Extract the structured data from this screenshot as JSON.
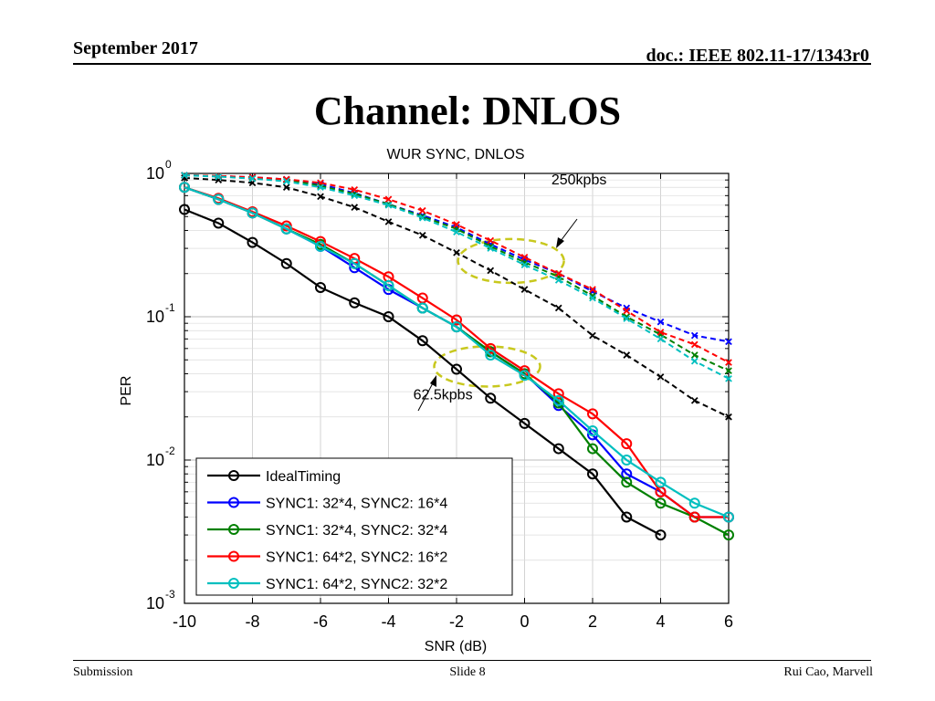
{
  "header": {
    "date": "September 2017",
    "doc": "doc.: IEEE 802.11-17/1343r0"
  },
  "slide_title": "Channel: DNLOS",
  "footer": {
    "left": "Submission",
    "center": "Slide 8",
    "right": "Rui Cao, Marvell"
  },
  "chart_data": {
    "type": "line",
    "title": "WUR SYNC, DNLOS",
    "xlabel": "SNR (dB)",
    "ylabel": "PER",
    "xlim": [
      -10,
      6
    ],
    "ylim": [
      0.001,
      1
    ],
    "yscale": "log",
    "xticks": [
      "-10",
      "-8",
      "-6",
      "-4",
      "-2",
      "0",
      "2",
      "4",
      "6"
    ],
    "yticks": [
      {
        "base": "10",
        "exp": "0",
        "value": 1
      },
      {
        "base": "10",
        "exp": "-1",
        "value": 0.1
      },
      {
        "base": "10",
        "exp": "-2",
        "value": 0.01
      },
      {
        "base": "10",
        "exp": "-3",
        "value": 0.001
      }
    ],
    "grid": true,
    "legend_position": "bottom-left",
    "annotations": [
      {
        "text": "250kpbs",
        "x": 1.6,
        "y": 0.84,
        "ellipse_center": [
          -0.4,
          0.245
        ]
      },
      {
        "text": "62.5kpbs",
        "x": -2.4,
        "y": 0.0265,
        "ellipse_center": [
          -1.1,
          0.045
        ]
      }
    ],
    "series": [
      {
        "name": "IdealTiming",
        "color": "#000000",
        "style": "solid",
        "marker": "circle",
        "x": [
          -10,
          -9,
          -8,
          -7,
          -6,
          -5,
          -4,
          -3,
          -2,
          -1,
          0,
          1,
          2,
          3,
          4
        ],
        "y": [
          0.56,
          0.45,
          0.33,
          0.235,
          0.16,
          0.125,
          0.1,
          0.068,
          0.043,
          0.027,
          0.018,
          0.012,
          0.008,
          0.004,
          0.003
        ]
      },
      {
        "name": "SYNC1: 32*4, SYNC2: 16*4",
        "color": "#0000ff",
        "style": "solid",
        "marker": "circle",
        "x": [
          -10,
          -9,
          -8,
          -7,
          -6,
          -5,
          -4,
          -3,
          -2,
          -1,
          0,
          1,
          2,
          3,
          4,
          5,
          6
        ],
        "y": [
          0.8,
          0.66,
          0.53,
          0.41,
          0.31,
          0.22,
          0.155,
          0.115,
          0.085,
          0.057,
          0.04,
          0.024,
          0.015,
          0.008,
          0.006,
          0.004,
          0.004
        ]
      },
      {
        "name": "SYNC1: 32*4, SYNC2: 32*4",
        "color": "#008000",
        "style": "solid",
        "marker": "circle",
        "x": [
          -10,
          -9,
          -8,
          -7,
          -6,
          -5,
          -4,
          -3,
          -2,
          -1,
          0,
          1,
          2,
          3,
          4,
          5,
          6
        ],
        "y": [
          0.8,
          0.66,
          0.53,
          0.41,
          0.32,
          0.235,
          0.165,
          0.115,
          0.085,
          0.057,
          0.04,
          0.025,
          0.012,
          0.007,
          0.005,
          0.004,
          0.003
        ]
      },
      {
        "name": "SYNC1: 64*2, SYNC2: 16*2",
        "color": "#ff0000",
        "style": "solid",
        "marker": "circle",
        "x": [
          -10,
          -9,
          -8,
          -7,
          -6,
          -5,
          -4,
          -3,
          -2,
          -1,
          0,
          1,
          2,
          3,
          4,
          5,
          6
        ],
        "y": [
          0.8,
          0.67,
          0.54,
          0.43,
          0.335,
          0.255,
          0.19,
          0.135,
          0.095,
          0.06,
          0.042,
          0.029,
          0.021,
          0.013,
          0.006,
          0.004,
          0.004
        ]
      },
      {
        "name": "SYNC1: 64*2, SYNC2: 32*2",
        "color": "#00bfbf",
        "style": "solid",
        "marker": "circle",
        "x": [
          -10,
          -9,
          -8,
          -7,
          -6,
          -5,
          -4,
          -3,
          -2,
          -1,
          0,
          1,
          2,
          3,
          4,
          5,
          6
        ],
        "y": [
          0.8,
          0.66,
          0.53,
          0.41,
          0.31,
          0.235,
          0.165,
          0.115,
          0.085,
          0.054,
          0.039,
          0.026,
          0.016,
          0.01,
          0.007,
          0.005,
          0.004
        ]
      },
      {
        "name": "",
        "color": "#000000",
        "style": "dashed",
        "marker": "x",
        "x": [
          -10,
          -9,
          -8,
          -7,
          -6,
          -5,
          -4,
          -3,
          -2,
          -1,
          0,
          1,
          2,
          3,
          4,
          5,
          6
        ],
        "y": [
          0.93,
          0.9,
          0.86,
          0.8,
          0.69,
          0.58,
          0.46,
          0.37,
          0.28,
          0.21,
          0.155,
          0.115,
          0.074,
          0.054,
          0.038,
          0.026,
          0.02
        ]
      },
      {
        "name": "",
        "color": "#0000ff",
        "style": "dashed",
        "marker": "x",
        "x": [
          -10,
          -9,
          -8,
          -7,
          -6,
          -5,
          -4,
          -3,
          -2,
          -1,
          0,
          1,
          2,
          3,
          4,
          5,
          6
        ],
        "y": [
          0.97,
          0.96,
          0.94,
          0.91,
          0.84,
          0.73,
          0.61,
          0.51,
          0.42,
          0.32,
          0.25,
          0.2,
          0.15,
          0.115,
          0.092,
          0.074,
          0.067
        ]
      },
      {
        "name": "",
        "color": "#008000",
        "style": "dashed",
        "marker": "x",
        "x": [
          -10,
          -9,
          -8,
          -7,
          -6,
          -5,
          -4,
          -3,
          -2,
          -1,
          0,
          1,
          2,
          3,
          4,
          5,
          6
        ],
        "y": [
          0.97,
          0.96,
          0.93,
          0.9,
          0.82,
          0.72,
          0.61,
          0.5,
          0.41,
          0.31,
          0.24,
          0.19,
          0.14,
          0.1,
          0.075,
          0.054,
          0.042
        ]
      },
      {
        "name": "",
        "color": "#ff0000",
        "style": "dashed",
        "marker": "x",
        "x": [
          -10,
          -9,
          -8,
          -7,
          -6,
          -5,
          -4,
          -3,
          -2,
          -1,
          0,
          1,
          2,
          3,
          4,
          5,
          6
        ],
        "y": [
          0.97,
          0.96,
          0.94,
          0.91,
          0.86,
          0.77,
          0.66,
          0.55,
          0.44,
          0.34,
          0.26,
          0.2,
          0.155,
          0.11,
          0.078,
          0.064,
          0.048
        ]
      },
      {
        "name": "",
        "color": "#00bfbf",
        "style": "dashed",
        "marker": "x",
        "x": [
          -10,
          -9,
          -8,
          -7,
          -6,
          -5,
          -4,
          -3,
          -2,
          -1,
          0,
          1,
          2,
          3,
          4,
          5,
          6
        ],
        "y": [
          0.97,
          0.95,
          0.92,
          0.88,
          0.8,
          0.7,
          0.6,
          0.49,
          0.39,
          0.3,
          0.23,
          0.18,
          0.135,
          0.097,
          0.07,
          0.049,
          0.037
        ]
      }
    ]
  }
}
